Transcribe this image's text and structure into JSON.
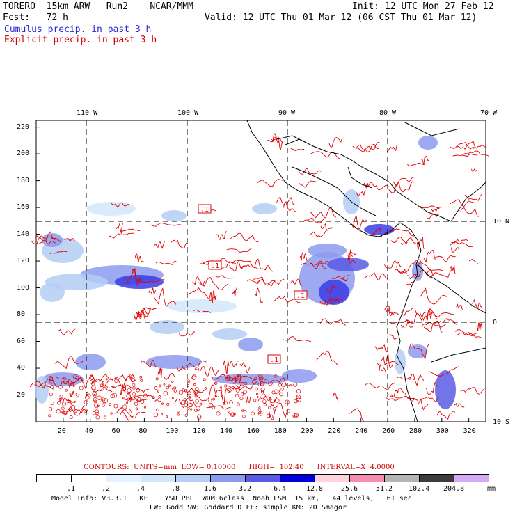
{
  "header": {
    "run_line": "TORERO  15km ARW   Run2    NCAR/MMM",
    "init": "Init: 12 UTC Mon 27 Feb 12",
    "fcst": "Fcst:   72 h",
    "valid": "Valid: 12 UTC Thu 01 Mar 12 (06 CST Thu 01 Mar 12)",
    "field_cumulus": "Cumulus precip. in past 3 h",
    "field_explicit": "Explicit precip. in past 3 h"
  },
  "map": {
    "lon_labels": [
      "110 W",
      "100 W",
      "90 W",
      "80 W",
      "70 W"
    ],
    "lat_labels": [
      "10 N",
      "0",
      "10 S"
    ],
    "y_ticks": [
      "220",
      "200",
      "180",
      "160",
      "140",
      "120",
      "100",
      "80",
      "60",
      "40",
      "20"
    ],
    "x_ticks": [
      "20",
      "40",
      "60",
      "80",
      "100",
      "120",
      "140",
      "160",
      "180",
      "200",
      "220",
      "240",
      "260",
      "280",
      "300",
      "320"
    ],
    "contour_labels": [
      ".1",
      ".1",
      ".1",
      ".1"
    ]
  },
  "legend": {
    "contours_line": "CONTOURS:  UNITS=mm  LOW= 0.10000      HIGH=  102.40      INTERVAL=X  4.0000",
    "units": "mm",
    "levels": [
      ".1",
      ".2",
      ".4",
      ".8",
      "1.6",
      "3.2",
      "6.4",
      "12.8",
      "25.6",
      "51.2",
      "102.4",
      "204.8"
    ],
    "colors": [
      "#ffffff",
      "#ffffff",
      "#e6f2ff",
      "#d2e6fa",
      "#b4cef5",
      "#8c9bf0",
      "#5a5ae6",
      "#0000dc",
      "#ffd2dc",
      "#f58cb4",
      "#b4b4b4",
      "#3c3c3c",
      "#d2aaf5"
    ]
  },
  "model_info": {
    "line1": "Model Info: V3.3.1   KF    YSU PBL  WDM 6class  Noah LSM  15 km,   44 levels,   61 sec",
    "line2": "LW: Godd SW: Goddard DIFF: simple KM: 2D Smagor"
  }
}
